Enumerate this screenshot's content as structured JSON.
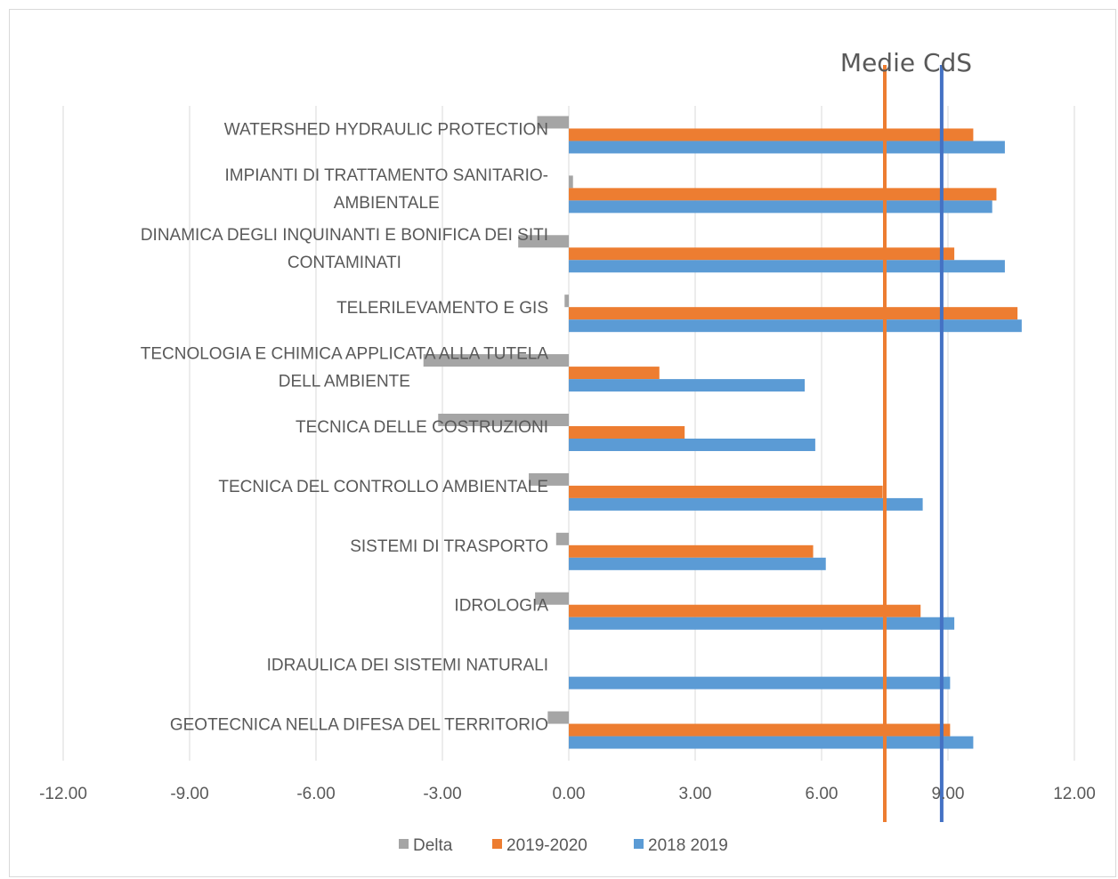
{
  "chart_data": {
    "type": "bar",
    "orientation": "horizontal",
    "title": "",
    "xlabel": "",
    "ylabel": "",
    "xlim": [
      -12,
      12
    ],
    "x_ticks": [
      -12,
      -9,
      -6,
      -3,
      0,
      3,
      6,
      9,
      12
    ],
    "x_tick_labels": [
      "-12.00",
      "-9.00",
      "-6.00",
      "-3.00",
      "0.00",
      "3.00",
      "6.00",
      "9.00",
      "12.00"
    ],
    "grid": "vertical",
    "legend_position": "bottom",
    "categories": [
      [
        "WATERSHED HYDRAULIC PROTECTION"
      ],
      [
        "IMPIANTI DI TRATTAMENTO SANITARIO-",
        "AMBIENTALE"
      ],
      [
        "DINAMICA DEGLI INQUINANTI E BONIFICA DEI SITI",
        "CONTAMINATI"
      ],
      [
        "TELERILEVAMENTO E GIS"
      ],
      [
        "TECNOLOGIA E CHIMICA APPLICATA ALLA TUTELA",
        "DELL AMBIENTE"
      ],
      [
        "TECNICA DELLE COSTRUZIONI"
      ],
      [
        "TECNICA DEL CONTROLLO AMBIENTALE"
      ],
      [
        "SISTEMI DI TRASPORTO"
      ],
      [
        "IDROLOGIA"
      ],
      [
        "IDRAULICA DEI SISTEMI NATURALI"
      ],
      [
        "GEOTECNICA NELLA DIFESA DEL TERRITORIO"
      ]
    ],
    "series": [
      {
        "name": "Delta",
        "color": "#a5a5a5",
        "values": [
          -0.75,
          0.1,
          -1.2,
          -0.1,
          -3.45,
          -3.1,
          -0.95,
          -0.3,
          -0.8,
          0,
          -0.5
        ]
      },
      {
        "name": "2019-2020",
        "color": "#ed7d31",
        "values": [
          9.6,
          10.15,
          9.15,
          10.65,
          2.15,
          2.75,
          7.45,
          5.8,
          8.35,
          0,
          9.05
        ]
      },
      {
        "name": "2018 2019",
        "color": "#5b9bd5",
        "values": [
          10.35,
          10.05,
          10.35,
          10.75,
          5.6,
          5.85,
          8.4,
          6.1,
          9.15,
          9.05,
          9.6
        ]
      }
    ],
    "reference_lines": [
      {
        "name": "2019-2020",
        "value": 7.5,
        "color": "#ed7d31"
      },
      {
        "name": "2018 2019",
        "value": 8.85,
        "color": "#4472c4"
      }
    ],
    "annotation": "Medie CdS"
  }
}
